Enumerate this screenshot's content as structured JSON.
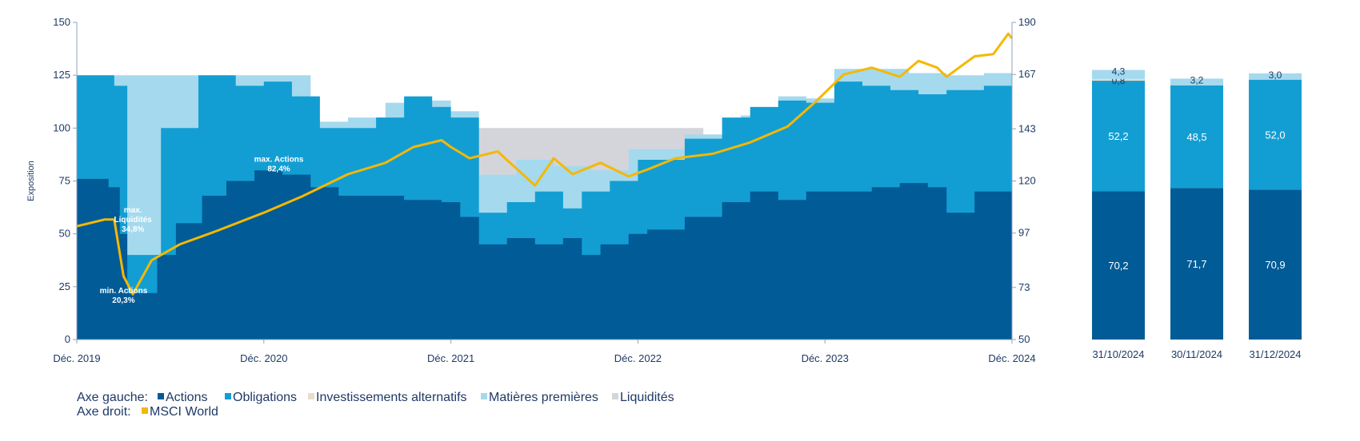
{
  "chart_data": [
    {
      "type": "area",
      "left_axis_label": "Exposition",
      "left_ylim": [
        0,
        150
      ],
      "left_ticks": [
        0,
        25,
        50,
        75,
        100,
        125,
        150
      ],
      "right_ylim": [
        50,
        190
      ],
      "right_ticks": [
        50,
        73,
        97,
        120,
        143,
        167,
        190
      ],
      "x_tick_labels": [
        "Déc. 2019",
        "Déc. 2020",
        "Déc. 2021",
        "Déc. 2022",
        "Déc. 2023",
        "Déc. 2024"
      ],
      "x_tick_years": [
        2019.95,
        2020.95,
        2021.95,
        2022.95,
        2023.95,
        2024.95
      ],
      "x_range": [
        2019.95,
        2024.95
      ],
      "series": [
        {
          "name": "Actions",
          "axis": "left",
          "color": "#005b96",
          "x": [
            2019.95,
            2020.12,
            2020.18,
            2020.22,
            2020.38,
            2020.48,
            2020.62,
            2020.75,
            2020.9,
            2021.05,
            2021.2,
            2021.35,
            2021.5,
            2021.7,
            2021.9,
            2022.0,
            2022.1,
            2022.25,
            2022.4,
            2022.55,
            2022.65,
            2022.75,
            2022.9,
            2023.0,
            2023.2,
            2023.4,
            2023.55,
            2023.7,
            2023.85,
            2024.0,
            2024.2,
            2024.35,
            2024.5,
            2024.6,
            2024.75,
            2024.95
          ],
          "values": [
            76,
            72,
            50,
            22,
            40,
            55,
            68,
            75,
            80,
            78,
            72,
            68,
            68,
            66,
            65,
            58,
            45,
            48,
            45,
            48,
            40,
            45,
            50,
            52,
            58,
            65,
            70,
            66,
            70,
            70,
            72,
            74,
            72,
            60,
            70,
            70
          ]
        },
        {
          "name": "Obligations",
          "axis": "left",
          "color": "#139ed3",
          "x": [
            2019.95,
            2020.15,
            2020.22,
            2020.4,
            2020.6,
            2020.8,
            2020.95,
            2021.1,
            2021.25,
            2021.4,
            2021.55,
            2021.7,
            2021.85,
            2021.95,
            2022.1,
            2022.25,
            2022.4,
            2022.55,
            2022.65,
            2022.8,
            2022.95,
            2023.2,
            2023.4,
            2023.55,
            2023.7,
            2023.85,
            2024.0,
            2024.15,
            2024.3,
            2024.45,
            2024.6,
            2024.8,
            2024.95
          ],
          "values": [
            125,
            120,
            40,
            100,
            125,
            120,
            122,
            115,
            100,
            100,
            105,
            115,
            110,
            105,
            60,
            65,
            70,
            62,
            70,
            75,
            85,
            95,
            105,
            110,
            113,
            112,
            122,
            120,
            118,
            116,
            118,
            120,
            122
          ]
        },
        {
          "name": "Matières premières",
          "axis": "left",
          "color": "#a5d9ee",
          "x": [
            2019.95,
            2021.2,
            2021.4,
            2021.6,
            2021.8,
            2021.95,
            2022.1,
            2022.3,
            2022.5,
            2022.7,
            2022.9,
            2023.2,
            2023.5,
            2023.7,
            2023.85,
            2024.0,
            2024.2,
            2024.4,
            2024.6,
            2024.8,
            2024.95
          ],
          "values": [
            125,
            103,
            105,
            112,
            113,
            108,
            78,
            85,
            82,
            80,
            90,
            97,
            106,
            115,
            114,
            128,
            128,
            126,
            125,
            126,
            128
          ]
        },
        {
          "name": "Liquidités",
          "axis": "left",
          "color": "#d4d4db",
          "x": [
            2020.15,
            2020.4,
            2021.95,
            2023.3
          ],
          "values": [
            100,
            100,
            100,
            100
          ]
        },
        {
          "name": "MSCI World",
          "axis": "right",
          "color": "#f5b800",
          "x": [
            2019.95,
            2020.1,
            2020.15,
            2020.2,
            2020.25,
            2020.35,
            2020.5,
            2020.7,
            2020.95,
            2021.15,
            2021.4,
            2021.6,
            2021.75,
            2021.9,
            2021.95,
            2022.05,
            2022.2,
            2022.4,
            2022.5,
            2022.6,
            2022.75,
            2022.9,
            2023.0,
            2023.15,
            2023.35,
            2023.55,
            2023.75,
            2023.9,
            2024.05,
            2024.2,
            2024.35,
            2024.45,
            2024.55,
            2024.6,
            2024.75,
            2024.85,
            2024.93,
            2024.95
          ],
          "values": [
            100,
            103,
            103,
            78,
            70,
            85,
            92,
            98,
            106,
            113,
            123,
            128,
            135,
            138,
            135,
            130,
            133,
            118,
            130,
            123,
            128,
            122,
            125,
            130,
            132,
            137,
            144,
            155,
            167,
            170,
            166,
            173,
            170,
            166,
            175,
            176,
            185,
            183
          ]
        }
      ],
      "annotations": [
        {
          "lines": [
            "max.",
            "Liquidités",
            "34,8%"
          ],
          "x": 2020.25,
          "y": 60
        },
        {
          "lines": [
            "max. Actions",
            "82,4%"
          ],
          "x": 2021.03,
          "y": 84
        },
        {
          "lines": [
            "min. Actions",
            "20,3%"
          ],
          "x": 2020.2,
          "y": 22
        }
      ]
    },
    {
      "type": "bar",
      "stacked": true,
      "categories": [
        "31/10/2024",
        "30/11/2024",
        "31/12/2024"
      ],
      "series": [
        {
          "name": "Actions",
          "color": "#005b96",
          "values": [
            70.2,
            71.7,
            70.9
          ],
          "labels": [
            "70,2",
            "71,7",
            "70,9"
          ]
        },
        {
          "name": "Obligations",
          "color": "#139ed3",
          "values": [
            52.2,
            48.5,
            52.0
          ],
          "labels": [
            "52,2",
            "48,5",
            "52,0"
          ]
        },
        {
          "name": "Investissements alternatifs",
          "color": "#e8dccb",
          "values": [
            0.8,
            0,
            0
          ],
          "labels": [
            "0,8",
            "",
            ""
          ]
        },
        {
          "name": "Matières premières",
          "color": "#a5d9ee",
          "values": [
            4.3,
            3.2,
            3.0
          ],
          "labels": [
            "4,3",
            "3,2",
            "3,0"
          ]
        }
      ],
      "ylim": [
        0,
        150
      ]
    }
  ],
  "legend": {
    "left_axis_label": "Axe gauche:",
    "right_axis_label": "Axe droit:",
    "items": [
      {
        "label": "Actions",
        "color": "#005b96"
      },
      {
        "label": "Obligations",
        "color": "#139ed3"
      },
      {
        "label": "Investissements alternatifs",
        "color": "#e8dccb"
      },
      {
        "label": "Matières premières",
        "color": "#a5d9ee"
      },
      {
        "label": "Liquidités",
        "color": "#d4d4db"
      }
    ],
    "right_items": [
      {
        "label": "MSCI World",
        "color": "#f5b800"
      }
    ]
  }
}
